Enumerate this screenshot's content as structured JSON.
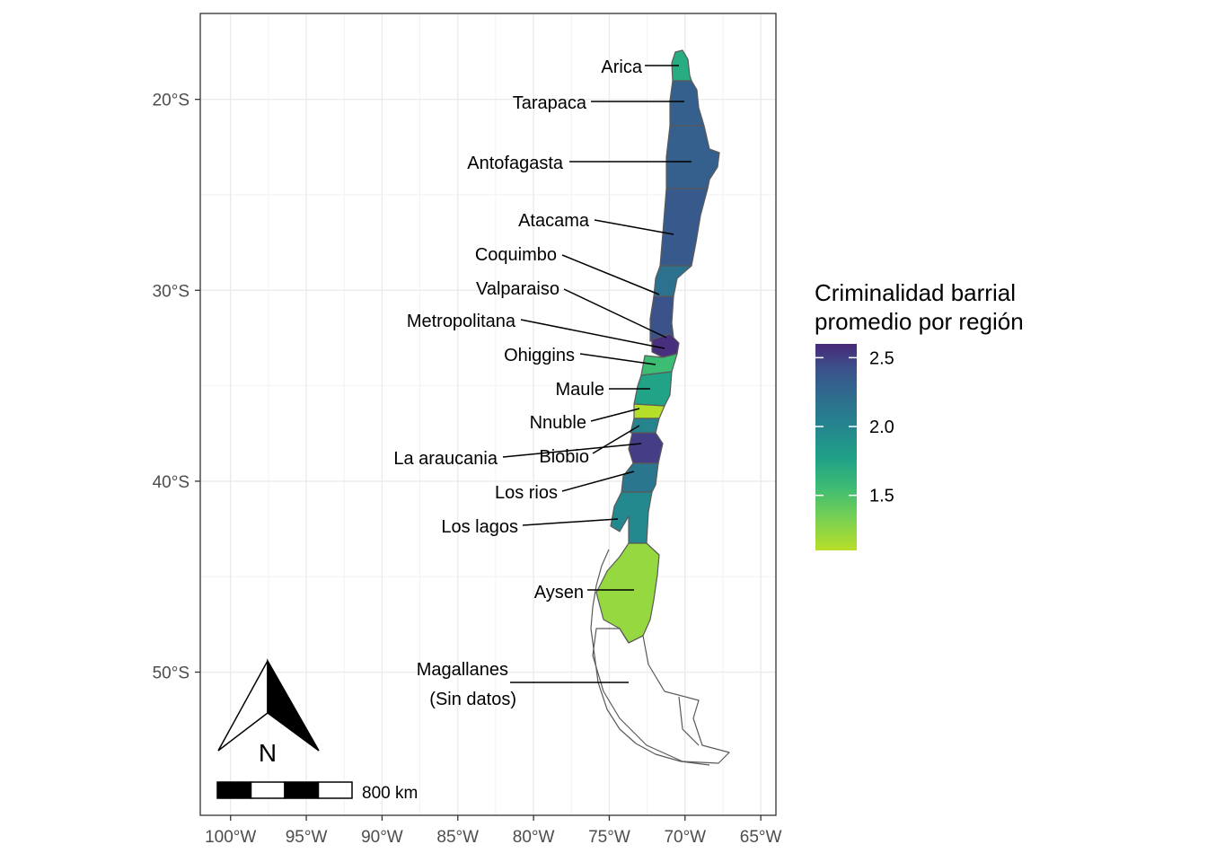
{
  "chart_data": {
    "type": "choropleth",
    "title": "",
    "xlabel": "",
    "ylabel": "",
    "xlim": [
      -102,
      -64
    ],
    "ylim": [
      -57.5,
      -15.5
    ],
    "grid": true,
    "x_ticks": [
      -100,
      -95,
      -90,
      -85,
      -80,
      -75,
      -70,
      -65
    ],
    "x_tick_labels": [
      "100°W",
      "95°W",
      "90°W",
      "85°W",
      "80°W",
      "75°W",
      "70°W",
      "65°W"
    ],
    "y_ticks": [
      -20,
      -30,
      -40,
      -50
    ],
    "y_tick_labels": [
      "20°S",
      "30°S",
      "40°S",
      "50°S"
    ],
    "regions": [
      {
        "name": "Arica",
        "value": 1.75,
        "color": "#27ad81"
      },
      {
        "name": "Tarapaca",
        "value": 2.3,
        "color": "#355f8d"
      },
      {
        "name": "Antofagasta",
        "value": 2.3,
        "color": "#355f8d"
      },
      {
        "name": "Atacama",
        "value": 2.25,
        "color": "#38598c"
      },
      {
        "name": "Coquimbo",
        "value": 2.05,
        "color": "#2c728e"
      },
      {
        "name": "Valparaiso",
        "value": 2.2,
        "color": "#3b528b"
      },
      {
        "name": "Metropolitana",
        "value": 2.55,
        "color": "#472f7d"
      },
      {
        "name": "Ohiggins",
        "value": 1.65,
        "color": "#3dbc74"
      },
      {
        "name": "Maule",
        "value": 1.85,
        "color": "#20a386"
      },
      {
        "name": "Nnuble",
        "value": 1.15,
        "color": "#b5de2b"
      },
      {
        "name": "Biobio",
        "value": 2.0,
        "color": "#25848e"
      },
      {
        "name": "La araucania",
        "value": 2.45,
        "color": "#433e85"
      },
      {
        "name": "Los rios",
        "value": 2.0,
        "color": "#2a768e"
      },
      {
        "name": "Los lagos",
        "value": 1.95,
        "color": "#23898e"
      },
      {
        "name": "Aysen",
        "value": 1.3,
        "color": "#95d840"
      },
      {
        "name": "Magallanes",
        "value": null,
        "color": "#ffffff"
      }
    ],
    "labels": [
      {
        "text": "Arica"
      },
      {
        "text": "Tarapaca"
      },
      {
        "text": "Antofagasta"
      },
      {
        "text": "Atacama"
      },
      {
        "text": "Coquimbo"
      },
      {
        "text": "Valparaiso"
      },
      {
        "text": "Metropolitana"
      },
      {
        "text": "Ohiggins"
      },
      {
        "text": "Maule"
      },
      {
        "text": "Nnuble"
      },
      {
        "text": "La araucania"
      },
      {
        "text": "Biobio"
      },
      {
        "text": "Los rios"
      },
      {
        "text": "Los lagos"
      },
      {
        "text": "Aysen"
      },
      {
        "text": "Magallanes"
      },
      {
        "text": "(Sin datos)"
      }
    ],
    "legend": {
      "title_line1": "Criminalidad barrial",
      "title_line2": "promedio por región",
      "placement": "right",
      "min": 1.1,
      "max": 2.6,
      "ticks": [
        2.5,
        2.0,
        1.5
      ],
      "tick_labels": [
        "2.5",
        "2.0",
        "1.5"
      ]
    },
    "north_arrow": {
      "letter": "N"
    },
    "scale_bar": {
      "label": "800 km"
    }
  }
}
